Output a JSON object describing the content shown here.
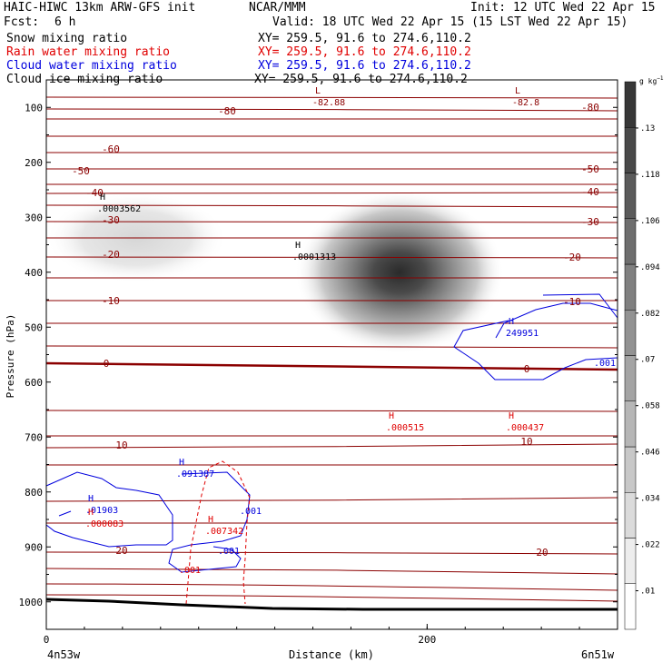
{
  "header": {
    "model": "HAIC-HIWC 13km ARW-GFS init",
    "org": "NCAR/MMM",
    "init": "Init: 12 UTC Wed 22 Apr 15",
    "fcst_label": "Fcst:",
    "fcst_value": "6 h",
    "valid": "Valid: 18 UTC Wed 22 Apr 15 (15 LST Wed 22 Apr 15)"
  },
  "fields": [
    {
      "name": "Snow mixing ratio",
      "xy": "XY= 259.5, 91.6 to 274.6,110.2",
      "color": "#000000"
    },
    {
      "name": "Rain water mixing ratio",
      "xy": "XY= 259.5, 91.6 to 274.6,110.2",
      "color": "#e00000"
    },
    {
      "name": "Cloud water mixing ratio",
      "xy": "XY= 259.5, 91.6 to 274.6,110.2",
      "color": "#0000dd"
    },
    {
      "name": "Cloud ice mixing ratio",
      "xy": "XY= 259.5, 91.6 to 274.6,110.2",
      "color": "#000000"
    }
  ],
  "chart_data": {
    "type": "contour",
    "xlabel": "Distance (km)",
    "ylabel": "Pressure (hPa)",
    "x_ticks": [
      0,
      200
    ],
    "y_ticks": [
      100,
      200,
      300,
      400,
      500,
      600,
      700,
      800,
      900,
      1000
    ],
    "xlim": [
      0,
      300
    ],
    "ylim": [
      1050,
      50
    ],
    "endpoint_labels": {
      "left": "4n53w",
      "right": "6n51w"
    },
    "colorbar": {
      "unit": "g kg",
      "unit_exp": "−1",
      "labels": [
        "0.01",
        ".022",
        ".034",
        ".046",
        ".058",
        ".07",
        ".082",
        ".094",
        ".106",
        ".118",
        ".13"
      ],
      "display": [
        ".01",
        ".022",
        ".034",
        ".046",
        ".058",
        ".07",
        ".082",
        ".094",
        ".106",
        ".118",
        ".13"
      ]
    },
    "temperature_labels": [
      "-80",
      "-60",
      "-50",
      "-40",
      "-30",
      "-20",
      "-10",
      "0",
      "10",
      "20"
    ],
    "extrema_labels": [
      {
        "type": "L",
        "value": "-82.88",
        "color": "#8b0000"
      },
      {
        "type": "L",
        "value": "-82.8",
        "color": "#8b0000"
      },
      {
        "type": "H",
        "value": ".0003562",
        "color": "#000000"
      },
      {
        "type": "H",
        "value": ".0001313",
        "color": "#000000"
      },
      {
        "type": "H",
        "value": "249951",
        "color": "#0000dd"
      },
      {
        "type": "H",
        "value": ".000515",
        "color": "#e00000"
      },
      {
        "type": "H",
        "value": ".000437",
        "color": "#e00000"
      },
      {
        "type": "H",
        "value": ".01903",
        "color": "#0000dd"
      },
      {
        "type": "H",
        "value": ".000083",
        "color": "#e00000"
      },
      {
        "type": "H",
        "value": ".091387",
        "color": "#0000dd"
      },
      {
        "type": "H",
        "value": ".007342",
        "color": "#e00000"
      }
    ],
    "contour_value_labels": [
      {
        "value": ".001",
        "color": "#0000dd"
      },
      {
        "value": ".001",
        "color": "#0000dd"
      },
      {
        "value": ".001",
        "color": "#0000dd"
      },
      {
        "value": ".001",
        "color": "#e00000"
      }
    ]
  }
}
